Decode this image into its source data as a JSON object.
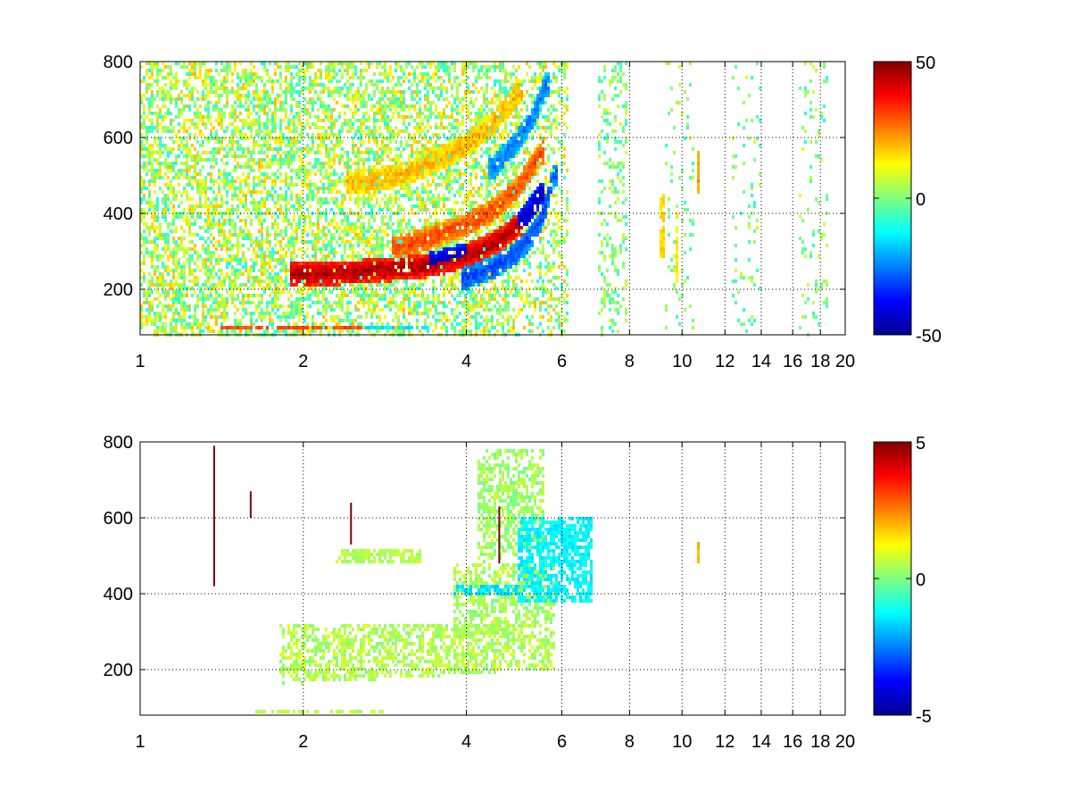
{
  "colors": {
    "axis": "#000000",
    "grid": "#000000",
    "background": "#ffffff",
    "jet_stops": [
      "#00008f",
      "#0000ff",
      "#00ffff",
      "#ffff00",
      "#ff0000",
      "#800000"
    ]
  },
  "chart_data": [
    {
      "type": "heatmap",
      "title": "",
      "xlabel": "",
      "ylabel": "",
      "x_scale": "log",
      "xlim": [
        1,
        20
      ],
      "ylim": [
        80,
        800
      ],
      "grid": true,
      "x_ticks": [
        1,
        2,
        4,
        6,
        8,
        10,
        12,
        14,
        16,
        18,
        20
      ],
      "x_tick_labels": [
        "1",
        "2",
        "4",
        "6",
        "8",
        "10",
        "12",
        "14",
        "16",
        "18",
        "20"
      ],
      "y_ticks": [
        200,
        400,
        600,
        800
      ],
      "y_tick_labels": [
        "200",
        "400",
        "600",
        "800"
      ],
      "colorbar": {
        "min": -50,
        "max": 50,
        "tick_labels": [
          "50",
          "0",
          "-50"
        ],
        "colormap": "jet",
        "placement": "right"
      },
      "features": [
        {
          "kind": "ridge",
          "x": [
            2.0,
            2.5,
            3.0,
            3.5,
            4.0,
            4.5,
            5.0
          ],
          "y": [
            240,
            245,
            255,
            265,
            290,
            320,
            370
          ],
          "value": 45
        },
        {
          "kind": "ridge",
          "x": [
            3.0,
            3.5,
            4.0,
            4.5,
            5.0,
            5.5
          ],
          "y": [
            310,
            340,
            370,
            410,
            470,
            560
          ],
          "value": 30
        },
        {
          "kind": "ridge",
          "x": [
            2.5,
            3.0,
            3.5,
            4.0,
            4.5,
            5.0
          ],
          "y": [
            480,
            500,
            540,
            580,
            640,
            720
          ],
          "value": 20
        },
        {
          "kind": "ridge",
          "x": [
            3.5,
            4.0,
            4.5,
            5.0,
            5.5
          ],
          "y": [
            270,
            290,
            320,
            370,
            450
          ],
          "value": -45
        },
        {
          "kind": "ridge",
          "x": [
            4.0,
            4.5,
            5.0,
            5.5,
            5.8
          ],
          "y": [
            230,
            260,
            300,
            380,
            500
          ],
          "value": -30
        },
        {
          "kind": "ridge",
          "x": [
            4.5,
            5.0,
            5.3,
            5.6
          ],
          "y": [
            520,
            600,
            650,
            740
          ],
          "value": -25
        },
        {
          "kind": "band",
          "x": [
            1.4,
            2.9
          ],
          "y": [
            90,
            100
          ],
          "value": 30
        },
        {
          "kind": "band",
          "x": [
            2.6,
            3.4
          ],
          "y": [
            90,
            102
          ],
          "value": -15
        },
        {
          "kind": "band",
          "x": [
            10.6,
            10.8
          ],
          "y": [
            450,
            560
          ],
          "value": 22
        },
        {
          "kind": "band",
          "x": [
            9.1,
            9.3
          ],
          "y": [
            280,
            450
          ],
          "value": 16
        },
        {
          "kind": "band",
          "x": [
            9.7,
            9.8
          ],
          "y": [
            220,
            400
          ],
          "value": 14
        }
      ]
    },
    {
      "type": "heatmap",
      "title": "",
      "xlabel": "",
      "ylabel": "",
      "x_scale": "log",
      "xlim": [
        1,
        20
      ],
      "ylim": [
        80,
        800
      ],
      "grid": true,
      "x_ticks": [
        1,
        2,
        4,
        6,
        8,
        10,
        12,
        14,
        16,
        18,
        20
      ],
      "x_tick_labels": [
        "1",
        "2",
        "4",
        "6",
        "8",
        "10",
        "12",
        "14",
        "16",
        "18",
        "20"
      ],
      "y_ticks": [
        200,
        400,
        600,
        800
      ],
      "y_tick_labels": [
        "200",
        "400",
        "600",
        "800"
      ],
      "colorbar": {
        "min": -5,
        "max": 5,
        "tick_labels": [
          "5",
          "0",
          "-5"
        ],
        "colormap": "jet",
        "placement": "right"
      },
      "features": [
        {
          "kind": "region",
          "x": [
            1.8,
            5.8
          ],
          "y": [
            160,
            320
          ],
          "value": 0.5
        },
        {
          "kind": "region",
          "x": [
            3.8,
            5.8
          ],
          "y": [
            280,
            480
          ],
          "value": 0.4
        },
        {
          "kind": "region",
          "x": [
            4.2,
            5.6
          ],
          "y": [
            480,
            780
          ],
          "value": 0.3
        },
        {
          "kind": "band",
          "x": [
            3.8,
            5.0
          ],
          "y": [
            395,
            420
          ],
          "value": -1.5
        },
        {
          "kind": "band",
          "x": [
            5.0,
            6.8
          ],
          "y": [
            380,
            600
          ],
          "value": -1.3
        },
        {
          "kind": "band",
          "x": [
            2.3,
            3.3
          ],
          "y": [
            480,
            520
          ],
          "value": 0.5
        },
        {
          "kind": "band",
          "x": [
            1.6,
            2.8
          ],
          "y": [
            88,
            98
          ],
          "value": 0.6
        },
        {
          "kind": "band",
          "x": [
            10.6,
            10.8
          ],
          "y": [
            480,
            540
          ],
          "value": 2.0
        },
        {
          "kind": "spike",
          "x": [
            1.37
          ],
          "y": [
            420,
            790
          ],
          "value": 5
        },
        {
          "kind": "spike",
          "x": [
            1.6
          ],
          "y": [
            600,
            670
          ],
          "value": 5
        },
        {
          "kind": "spike",
          "x": [
            2.45
          ],
          "y": [
            530,
            640
          ],
          "value": 5
        },
        {
          "kind": "spike",
          "x": [
            4.6
          ],
          "y": [
            480,
            630
          ],
          "value": 5
        }
      ]
    }
  ]
}
